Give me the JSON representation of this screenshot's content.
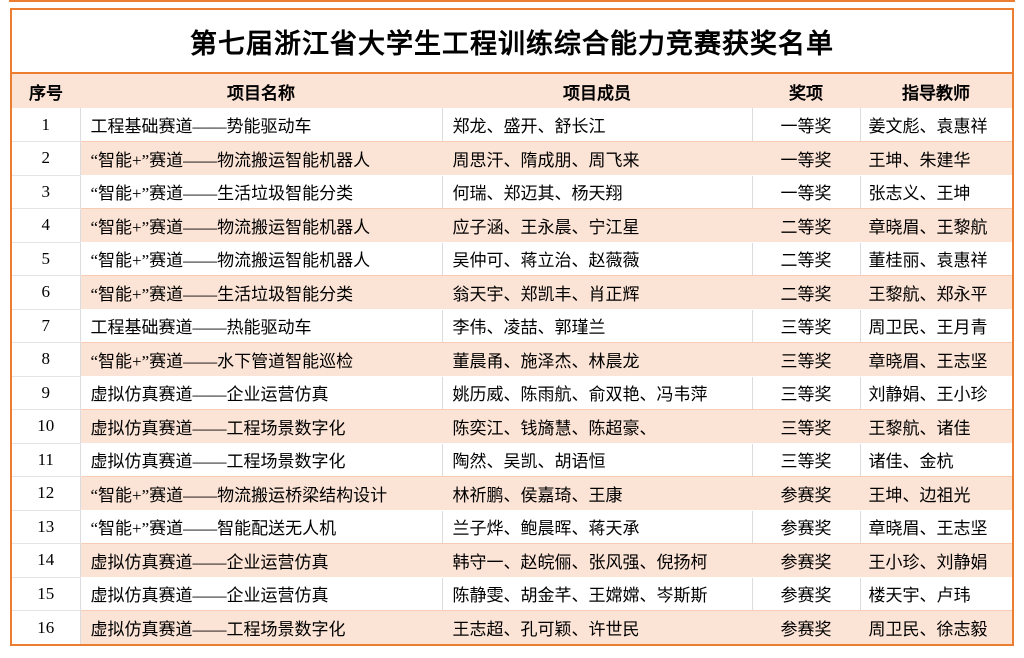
{
  "title": "第七届浙江省大学生工程训练综合能力竞赛获奖名单",
  "colors": {
    "accent_orange": "#ED7D31",
    "row_peach": "#FBE3D5",
    "grid_gray": "#DBDBE0"
  },
  "table": {
    "columns": [
      "序号",
      "项目名称",
      "项目成员",
      "奖项",
      "指导教师"
    ],
    "rows": [
      {
        "no": "1",
        "project": "工程基础赛道——势能驱动车",
        "members": "郑龙、盛开、舒长江",
        "award": "一等奖",
        "advisors": "姜文彪、袁惠祥"
      },
      {
        "no": "2",
        "project": "“智能+”赛道——物流搬运智能机器人",
        "members": "周思汗、隋成朋、周飞来",
        "award": "一等奖",
        "advisors": "王坤、朱建华"
      },
      {
        "no": "3",
        "project": "“智能+”赛道——生活垃圾智能分类",
        "members": "何瑞、郑迈其、杨天翔",
        "award": "一等奖",
        "advisors": "张志义、王坤"
      },
      {
        "no": "4",
        "project": "“智能+”赛道——物流搬运智能机器人",
        "members": "应子涵、王永晨、宁江星",
        "award": "二等奖",
        "advisors": "章晓眉、王黎航"
      },
      {
        "no": "5",
        "project": "“智能+”赛道——物流搬运智能机器人",
        "members": "吴仲可、蒋立治、赵薇薇",
        "award": "二等奖",
        "advisors": "董桂丽、袁惠祥"
      },
      {
        "no": "6",
        "project": "“智能+”赛道——生活垃圾智能分类",
        "members": "翁天宇、郑凯丰、肖正辉",
        "award": "二等奖",
        "advisors": "王黎航、郑永平"
      },
      {
        "no": "7",
        "project": "工程基础赛道——热能驱动车",
        "members": "李伟、凌喆、郭瑾兰",
        "award": "三等奖",
        "advisors": "周卫民、王月青"
      },
      {
        "no": "8",
        "project": "“智能+”赛道——水下管道智能巡检",
        "members": "董晨甬、施泽杰、林晨龙",
        "award": "三等奖",
        "advisors": "章晓眉、王志坚"
      },
      {
        "no": "9",
        "project": "虚拟仿真赛道——企业运营仿真",
        "members": "姚历威、陈雨航、俞双艳、冯韦萍",
        "award": "三等奖",
        "advisors": "刘静娟、王小珍"
      },
      {
        "no": "10",
        "project": "虚拟仿真赛道——工程场景数字化",
        "members": "陈奕江、钱旖慧、陈超豪、",
        "award": "三等奖",
        "advisors": "王黎航、诸佳"
      },
      {
        "no": "11",
        "project": "虚拟仿真赛道——工程场景数字化",
        "members": "陶然、吴凯、胡语恒",
        "award": "三等奖",
        "advisors": "诸佳、金杭"
      },
      {
        "no": "12",
        "project": "“智能+”赛道——物流搬运桥梁结构设计",
        "members": "林祈鹏、侯嘉琦、王康",
        "award": "参赛奖",
        "advisors": "王坤、边祖光"
      },
      {
        "no": "13",
        "project": "“智能+”赛道——智能配送无人机",
        "members": "兰子烨、鲍晨晖、蒋天承",
        "award": "参赛奖",
        "advisors": "章晓眉、王志坚"
      },
      {
        "no": "14",
        "project": "虚拟仿真赛道——企业运营仿真",
        "members": "韩守一、赵皖俪、张风强、倪扬柯",
        "award": "参赛奖",
        "advisors": "王小珍、刘静娟"
      },
      {
        "no": "15",
        "project": "虚拟仿真赛道——企业运营仿真",
        "members": "陈静雯、胡金芊、王嫦嫦、岑斯斯",
        "award": "参赛奖",
        "advisors": "楼天宇、卢玮"
      },
      {
        "no": "16",
        "project": "虚拟仿真赛道——工程场景数字化",
        "members": "王志超、孔可颖、许世民",
        "award": "参赛奖",
        "advisors": "周卫民、徐志毅"
      }
    ]
  }
}
